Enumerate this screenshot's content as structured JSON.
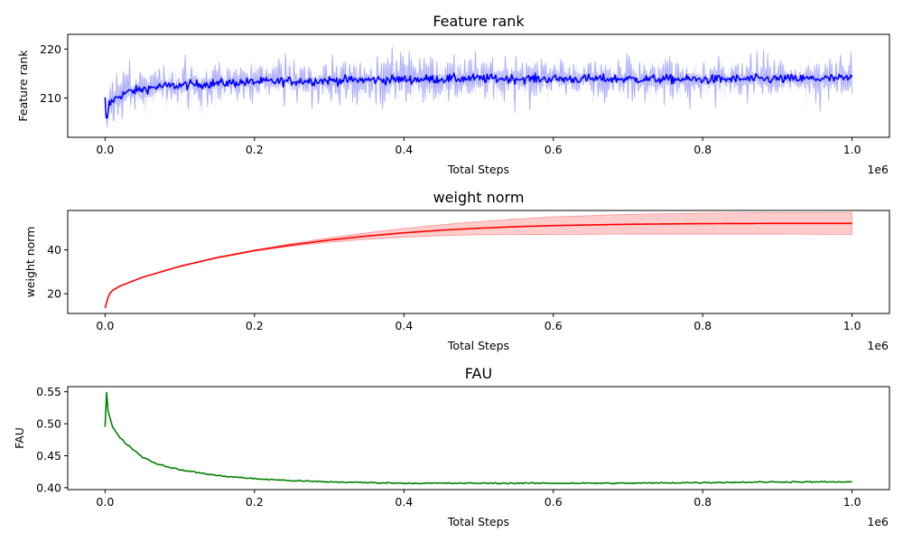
{
  "chart_data": [
    {
      "type": "line",
      "title": "Feature rank",
      "xlabel": "Total Steps",
      "ylabel": "Feature rank",
      "x_offset_label": "1e6",
      "xlim": [
        -0.05,
        1.05
      ],
      "ylim": [
        202,
        223
      ],
      "xticks": [
        0.0,
        0.2,
        0.4,
        0.6,
        0.8,
        1.0
      ],
      "xtick_labels": [
        "0.0",
        "0.2",
        "0.4",
        "0.6",
        "0.8",
        "1.0"
      ],
      "yticks": [
        210,
        220
      ],
      "ytick_labels": [
        "210",
        "220"
      ],
      "series": [
        {
          "color": "#0000ff",
          "band": true,
          "band_color": "#0000ff",
          "points": [
            [
              0.0,
              209.5
            ],
            [
              0.002,
              204.0
            ],
            [
              0.005,
              208.5
            ],
            [
              0.01,
              209.5
            ],
            [
              0.02,
              210.5
            ],
            [
              0.03,
              211.2
            ],
            [
              0.05,
              211.8
            ],
            [
              0.07,
              212.3
            ],
            [
              0.1,
              212.6
            ],
            [
              0.15,
              213.0
            ],
            [
              0.2,
              213.3
            ],
            [
              0.3,
              213.6
            ],
            [
              0.4,
              213.8
            ],
            [
              0.5,
              214.0
            ],
            [
              0.6,
              213.9
            ],
            [
              0.7,
              213.9
            ],
            [
              0.8,
              213.8
            ],
            [
              0.9,
              213.9
            ],
            [
              1.0,
              214.0
            ]
          ],
          "band_halfwidth_approx": 3.5
        }
      ]
    },
    {
      "type": "line",
      "title": "weight norm",
      "xlabel": "Total Steps",
      "ylabel": "weight norm",
      "x_offset_label": "1e6",
      "xlim": [
        -0.05,
        1.05
      ],
      "ylim": [
        11,
        58
      ],
      "xticks": [
        0.0,
        0.2,
        0.4,
        0.6,
        0.8,
        1.0
      ],
      "xtick_labels": [
        "0.0",
        "0.2",
        "0.4",
        "0.6",
        "0.8",
        "1.0"
      ],
      "yticks": [
        20,
        40
      ],
      "ytick_labels": [
        "20",
        "40"
      ],
      "series": [
        {
          "color": "#ff0000",
          "band": true,
          "band_color": "#ff0000",
          "points": [
            [
              0.0,
              13.5
            ],
            [
              0.005,
              19.5
            ],
            [
              0.01,
              21.5
            ],
            [
              0.02,
              23.5
            ],
            [
              0.05,
              27.5
            ],
            [
              0.1,
              32.5
            ],
            [
              0.15,
              36.5
            ],
            [
              0.2,
              39.7
            ],
            [
              0.25,
              42.3
            ],
            [
              0.3,
              44.5
            ],
            [
              0.35,
              46.3
            ],
            [
              0.4,
              47.8
            ],
            [
              0.45,
              49.0
            ],
            [
              0.5,
              49.9
            ],
            [
              0.55,
              50.6
            ],
            [
              0.6,
              51.1
            ],
            [
              0.7,
              51.7
            ],
            [
              0.8,
              52.0
            ],
            [
              0.9,
              52.1
            ],
            [
              1.0,
              52.1
            ]
          ],
          "band_halfwidth": [
            [
              0.0,
              0.0
            ],
            [
              0.2,
              0.3
            ],
            [
              0.3,
              1.0
            ],
            [
              0.4,
              2.0
            ],
            [
              0.5,
              3.0
            ],
            [
              0.6,
              4.0
            ],
            [
              0.7,
              4.5
            ],
            [
              0.8,
              4.8
            ],
            [
              1.0,
              5.0
            ]
          ]
        }
      ]
    },
    {
      "type": "line",
      "title": "FAU",
      "xlabel": "Total Steps",
      "ylabel": "FAU",
      "x_offset_label": "1e6",
      "xlim": [
        -0.05,
        1.05
      ],
      "ylim": [
        0.397,
        0.558
      ],
      "xticks": [
        0.0,
        0.2,
        0.4,
        0.6,
        0.8,
        1.0
      ],
      "xtick_labels": [
        "0.0",
        "0.2",
        "0.4",
        "0.6",
        "0.8",
        "1.0"
      ],
      "yticks": [
        0.4,
        0.45,
        0.5,
        0.55
      ],
      "ytick_labels": [
        "0.40",
        "0.45",
        "0.50",
        "0.55"
      ],
      "series": [
        {
          "color": "#008000",
          "band": false,
          "points": [
            [
              0.0,
              0.495
            ],
            [
              0.002,
              0.549
            ],
            [
              0.004,
              0.52
            ],
            [
              0.01,
              0.495
            ],
            [
              0.02,
              0.478
            ],
            [
              0.03,
              0.467
            ],
            [
              0.05,
              0.448
            ],
            [
              0.07,
              0.437
            ],
            [
              0.1,
              0.428
            ],
            [
              0.15,
              0.419
            ],
            [
              0.2,
              0.414
            ],
            [
              0.25,
              0.411
            ],
            [
              0.3,
              0.409
            ],
            [
              0.4,
              0.407
            ],
            [
              0.5,
              0.407
            ],
            [
              0.6,
              0.407
            ],
            [
              0.7,
              0.407
            ],
            [
              0.8,
              0.408
            ],
            [
              0.9,
              0.409
            ],
            [
              1.0,
              0.409
            ]
          ]
        }
      ]
    }
  ]
}
